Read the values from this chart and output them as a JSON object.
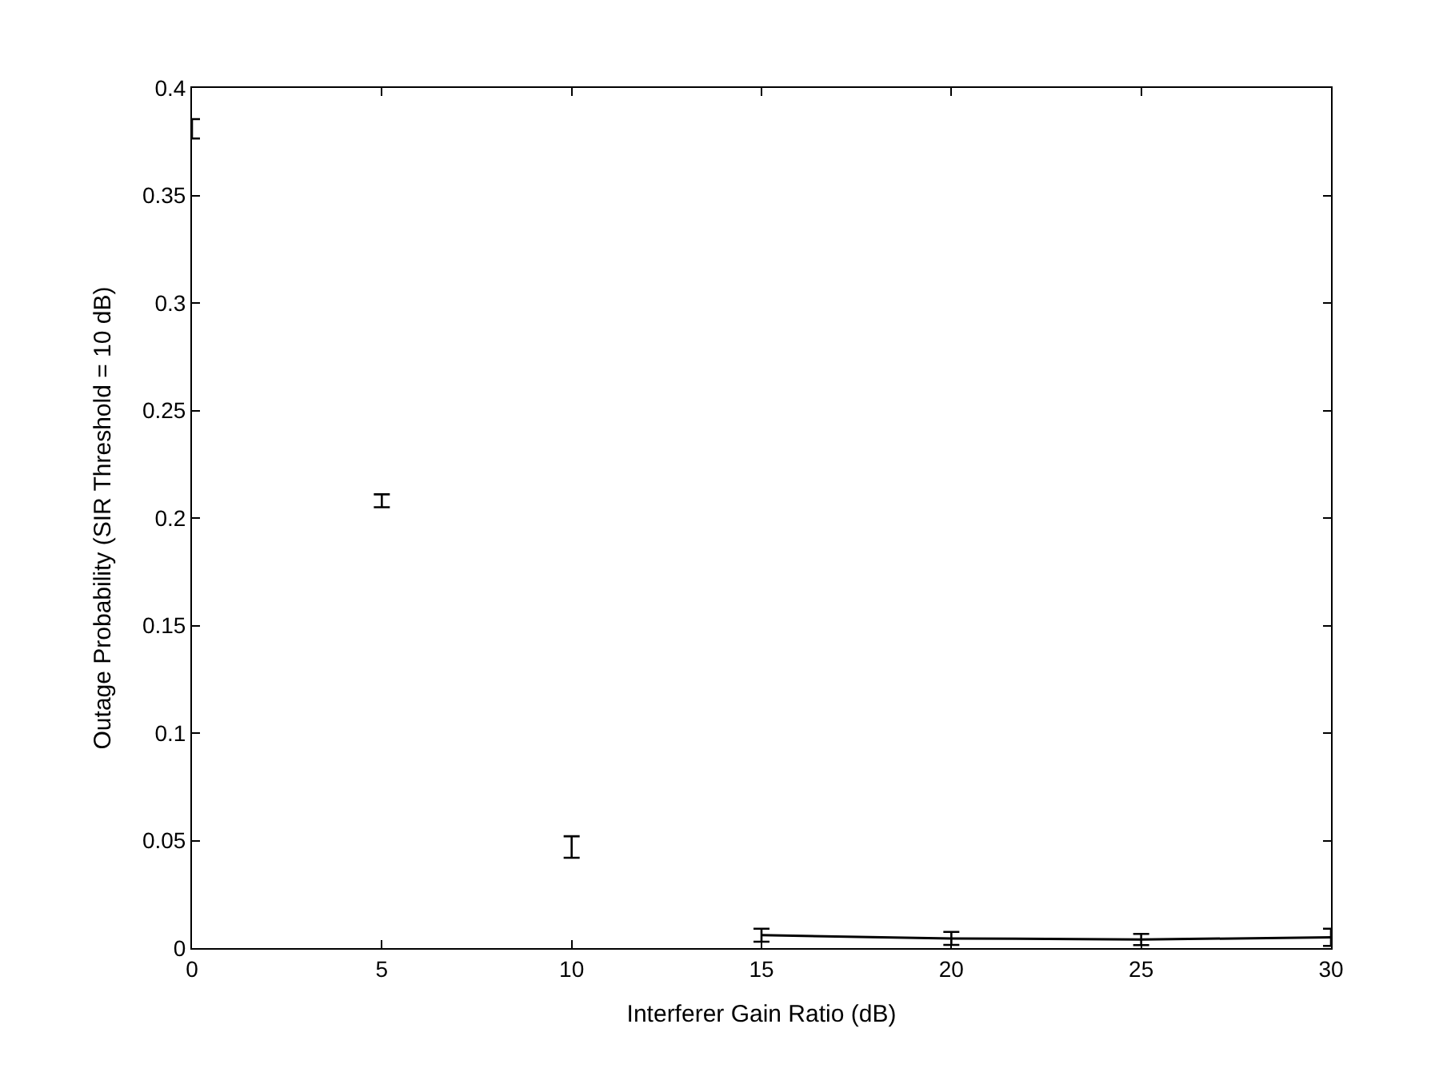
{
  "chart_data": {
    "type": "scatter",
    "xlabel": "Interferer Gain Ratio (dB)",
    "ylabel": "Outage Probability (SIR Threshold = 10 dB)",
    "x": [
      0,
      5,
      10,
      15,
      20,
      25,
      30
    ],
    "series": [
      {
        "color": "#000000",
        "values": [
          0.381,
          0.208,
          0.047,
          0.006,
          0.0045,
          0.004,
          0.005
        ],
        "errors": [
          0.0045,
          0.003,
          0.005,
          0.003,
          0.003,
          0.0026,
          0.004
        ]
      },
      {
        "type": "line",
        "color": "#000000",
        "marker": "none",
        "line_style": "solid",
        "x": [
          15,
          20,
          25,
          30
        ],
        "values": [
          0.006,
          0.0045,
          0.004,
          0.005
        ]
      }
    ],
    "xlim": [
      0,
      30
    ],
    "ylim": [
      0,
      0.4
    ],
    "xticks": [
      0,
      5,
      10,
      15,
      20,
      25,
      30
    ],
    "yticks": [
      0,
      0.05,
      0.1,
      0.15,
      0.2,
      0.25,
      0.3,
      0.35,
      0.4
    ]
  }
}
